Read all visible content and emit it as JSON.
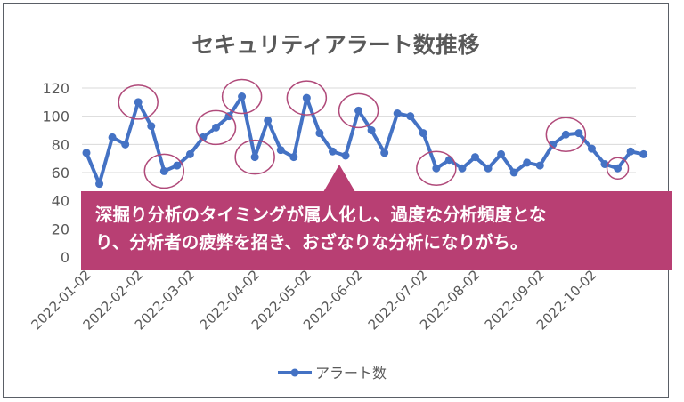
{
  "chart_data": {
    "type": "line",
    "title": "セキュリティアラート数推移",
    "xlabel": "",
    "ylabel": "",
    "ylim": [
      0,
      120
    ],
    "y_ticks": [
      0,
      20,
      40,
      60,
      80,
      100,
      120
    ],
    "grid": true,
    "legend_position": "bottom",
    "x_tick_labels": [
      "2022-01-02",
      "2022-02-02",
      "2022-03-02",
      "2022-04-02",
      "2022-05-02",
      "2022-06-02",
      "2022-07-02",
      "2022-08-02",
      "2022-09-02",
      "2022-10-02"
    ],
    "series": [
      {
        "name": "アラート数",
        "color": "#4472c4",
        "values": [
          74,
          52,
          85,
          80,
          110,
          93,
          61,
          65,
          73,
          85,
          92,
          100,
          114,
          71,
          97,
          76,
          71,
          113,
          88,
          75,
          72,
          104,
          90,
          74,
          102,
          100,
          88,
          63,
          69,
          63,
          71,
          63,
          73,
          60,
          67,
          65,
          80,
          87,
          88,
          77,
          66,
          63,
          75,
          73
        ]
      }
    ],
    "highlight_points": [
      4,
      6,
      10,
      12,
      13,
      17,
      21,
      27,
      37,
      41
    ],
    "highlight_color": "#b04a7a"
  },
  "callout": {
    "lines": [
      "深掘り分析のタイミングが属人化し、過度な分析頻度とな",
      "り、分析者の疲弊を招き、おざなりな分析になりがち。"
    ],
    "background": "#b83f73"
  }
}
